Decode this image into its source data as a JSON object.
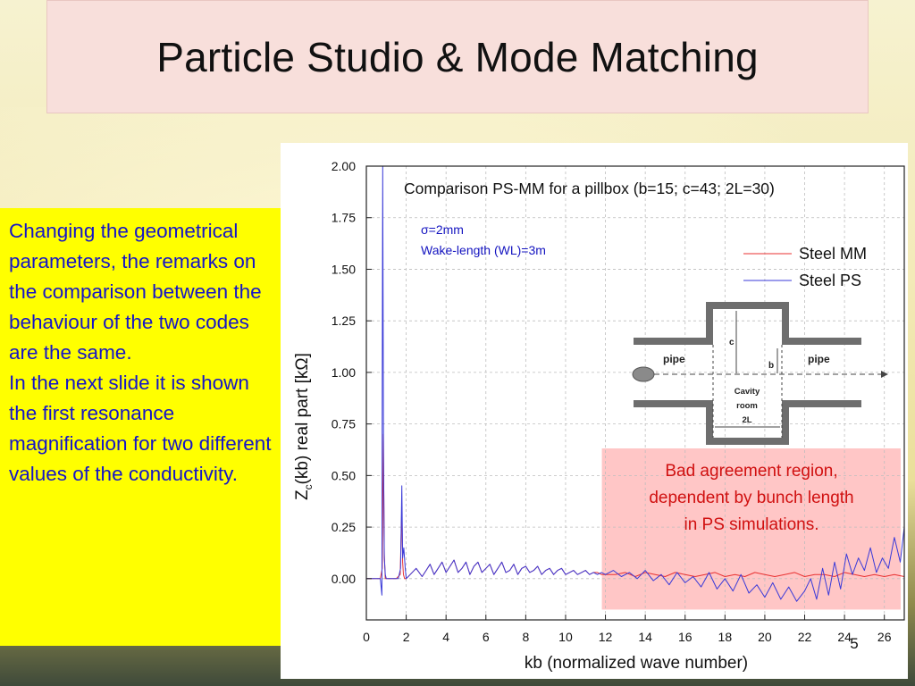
{
  "slide": {
    "title": "Particle Studio & Mode Matching",
    "page_number": "5"
  },
  "sidebar": {
    "paragraphs": [
      "Changing the geometrical parameters, the remarks on the comparison between the behaviour of the two codes are the same.",
      "In the next slide it is shown the first resonance magnification for two different values of the conductivity."
    ]
  },
  "figure": {
    "sigma_label": "σ=2mm",
    "wake_label": "Wake-length (WL)=3m",
    "bad_region_text": [
      "Bad agreement region,",
      "dependent by bunch length",
      "in PS simulations."
    ],
    "inset": {
      "pipe_left": "pipe",
      "pipe_right": "pipe",
      "c_label": "c",
      "b_label": "b",
      "cavity_lines": [
        "Cavity",
        "room",
        "2L"
      ]
    }
  },
  "chart_data": {
    "type": "line",
    "title": "Comparison PS-MM for a pillbox (b=15; c=43; 2L=30)",
    "xlabel": "kb (normalized wave number)",
    "ylabel_main": "Z",
    "ylabel_sub": "c",
    "ylabel_rest": "(kb)  real part [kΩ]",
    "xlim": [
      0,
      27
    ],
    "ylim": [
      -0.2,
      2.0
    ],
    "x_ticks": [
      "0",
      "2",
      "4",
      "6",
      "8",
      "10",
      "12",
      "14",
      "16",
      "18",
      "20",
      "22",
      "24",
      "26"
    ],
    "y_ticks": [
      "0.00",
      "0.25",
      "0.50",
      "0.75",
      "1.00",
      "1.25",
      "1.50",
      "1.75",
      "2.00"
    ],
    "grid": true,
    "legend_position": "top-right",
    "bad_region_x": [
      12,
      27
    ],
    "series": [
      {
        "name": "Steel MM",
        "color": "#e83030",
        "x": [
          0,
          0.7,
          0.8,
          0.85,
          0.9,
          0.95,
          1.0,
          1.1,
          1.3,
          1.5,
          1.7,
          1.78,
          1.82,
          1.86,
          1.92,
          2.0,
          2.2,
          2.5,
          2.8,
          3.0,
          3.2,
          3.4,
          3.6,
          3.8,
          4.0,
          4.2,
          4.4,
          4.6,
          4.8,
          5.0,
          5.2,
          5.4,
          5.6,
          5.8,
          6.0,
          6.2,
          6.4,
          6.6,
          6.8,
          7.0,
          7.2,
          7.4,
          7.6,
          7.8,
          8.0,
          8.2,
          8.4,
          8.6,
          8.8,
          9.0,
          9.2,
          9.4,
          9.6,
          9.8,
          10.0,
          10.2,
          10.4,
          10.6,
          10.8,
          11.0,
          11.2,
          11.4,
          11.6,
          11.8,
          12.0,
          12.5,
          13.0,
          13.5,
          14.0,
          14.5,
          15.0,
          15.5,
          16.0,
          16.5,
          17.0,
          17.5,
          18.0,
          18.5,
          19.0,
          19.5,
          20.0,
          20.5,
          21.0,
          21.5,
          22.0,
          22.5,
          23.0,
          23.5,
          24.0,
          24.5,
          25.0,
          25.5,
          26.0,
          26.5,
          27.0
        ],
        "y": [
          0,
          0,
          0.05,
          0.7,
          0.12,
          0,
          0,
          0,
          0,
          0,
          0.02,
          0.35,
          0.08,
          0.02,
          0,
          0,
          0.02,
          0.05,
          0.01,
          0.04,
          0.07,
          0.02,
          0.05,
          0.08,
          0.03,
          0.06,
          0.09,
          0.03,
          0.05,
          0.08,
          0.02,
          0.06,
          0.08,
          0.03,
          0.05,
          0.07,
          0.02,
          0.05,
          0.08,
          0.03,
          0.04,
          0.07,
          0.02,
          0.05,
          0.06,
          0.03,
          0.04,
          0.06,
          0.02,
          0.04,
          0.05,
          0.02,
          0.04,
          0.05,
          0.02,
          0.03,
          0.04,
          0.02,
          0.03,
          0.04,
          0.02,
          0.03,
          0.03,
          0.02,
          0.02,
          0.02,
          0.03,
          0.01,
          0.03,
          0.02,
          0.01,
          0.03,
          0.02,
          0.01,
          0.02,
          0.03,
          0.01,
          0.02,
          0.01,
          0.03,
          0.02,
          0.01,
          0.02,
          0.03,
          0.01,
          0.02,
          0.02,
          0.01,
          0.03,
          0.02,
          0.01,
          0.02,
          0.01,
          0.02,
          0.01
        ]
      },
      {
        "name": "Steel PS",
        "color": "#3a3ad8",
        "x": [
          0,
          0.7,
          0.78,
          0.8,
          0.82,
          0.86,
          0.9,
          0.95,
          1.0,
          1.2,
          1.4,
          1.6,
          1.72,
          1.78,
          1.82,
          1.88,
          1.95,
          2.0,
          2.2,
          2.5,
          2.8,
          3.0,
          3.2,
          3.4,
          3.6,
          3.8,
          4.0,
          4.2,
          4.4,
          4.6,
          4.8,
          5.0,
          5.2,
          5.4,
          5.6,
          5.8,
          6.0,
          6.2,
          6.4,
          6.6,
          6.8,
          7.0,
          7.2,
          7.4,
          7.6,
          7.8,
          8.0,
          8.2,
          8.4,
          8.6,
          8.8,
          9.0,
          9.2,
          9.4,
          9.6,
          9.8,
          10.0,
          10.2,
          10.4,
          10.6,
          10.8,
          11.0,
          11.2,
          11.4,
          11.6,
          11.8,
          12.0,
          12.4,
          12.8,
          13.2,
          13.6,
          14.0,
          14.4,
          14.8,
          15.2,
          15.6,
          16.0,
          16.4,
          16.8,
          17.2,
          17.6,
          18.0,
          18.4,
          18.8,
          19.2,
          19.6,
          20.0,
          20.4,
          20.8,
          21.2,
          21.6,
          22.0,
          22.3,
          22.6,
          22.9,
          23.2,
          23.5,
          23.8,
          24.1,
          24.4,
          24.7,
          25.0,
          25.3,
          25.6,
          25.9,
          26.2,
          26.5,
          26.8,
          27.0
        ],
        "y": [
          0,
          0,
          -0.08,
          1.0,
          2.0,
          0.6,
          0.1,
          0.02,
          0,
          0,
          0,
          0,
          0.05,
          0.45,
          0.1,
          0.15,
          0.05,
          0,
          0.02,
          0.05,
          0.01,
          0.04,
          0.07,
          0.02,
          0.05,
          0.08,
          0.03,
          0.06,
          0.09,
          0.03,
          0.05,
          0.08,
          0.02,
          0.06,
          0.08,
          0.03,
          0.05,
          0.07,
          0.02,
          0.05,
          0.08,
          0.03,
          0.04,
          0.07,
          0.02,
          0.05,
          0.06,
          0.03,
          0.04,
          0.06,
          0.02,
          0.04,
          0.05,
          0.02,
          0.04,
          0.05,
          0.02,
          0.03,
          0.04,
          0.02,
          0.03,
          0.04,
          0.02,
          0.03,
          0.02,
          0.03,
          0.02,
          0.04,
          0.01,
          0.03,
          0.0,
          0.04,
          -0.01,
          0.02,
          -0.03,
          0.03,
          -0.02,
          0.01,
          -0.04,
          0.03,
          -0.05,
          0.0,
          -0.06,
          0.02,
          -0.07,
          -0.03,
          -0.09,
          -0.02,
          -0.1,
          -0.04,
          -0.11,
          -0.06,
          0.0,
          -0.1,
          0.05,
          -0.08,
          0.08,
          -0.05,
          0.12,
          0.02,
          0.1,
          0.04,
          0.15,
          0.03,
          0.1,
          0.05,
          0.2,
          0.08,
          0.25
        ]
      }
    ]
  }
}
